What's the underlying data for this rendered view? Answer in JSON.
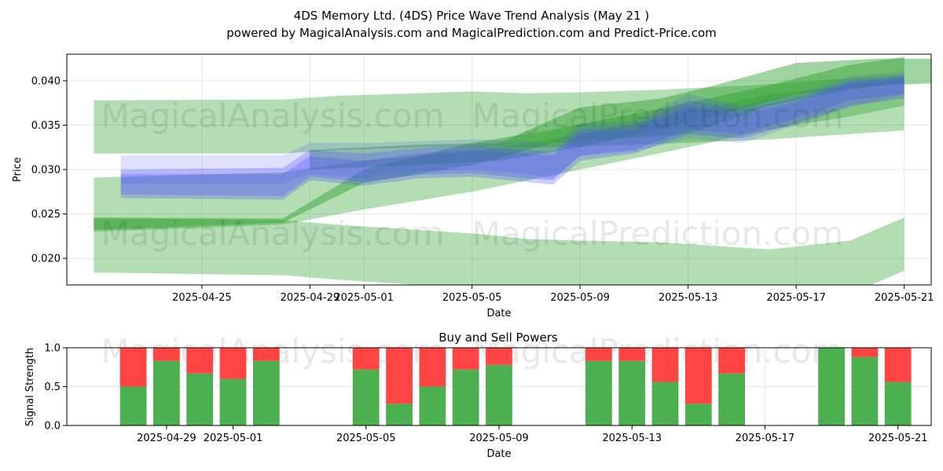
{
  "title": "4DS Memory Ltd. (4DS) Price Wave Trend Analysis (May 21 )",
  "subtitle": "powered by MagicalAnalysis.com and MagicalPrediction.com and Predict-Price.com",
  "watermarks": [
    "MagicalAnalysis.com",
    "MagicalPrediction.com"
  ],
  "colors": {
    "green": "#2ca02c",
    "blue": "#4d4dff",
    "buy": "#4caf50",
    "sell": "#ff4444"
  },
  "chart_data": [
    {
      "type": "area",
      "xlabel": "Date",
      "ylabel": "Price",
      "xlim": [
        "2025-04-20",
        "2025-05-22"
      ],
      "ylim": [
        0.017,
        0.043
      ],
      "xticks": [
        "2025-04-25",
        "2025-04-29",
        "2025-05-01",
        "2025-05-05",
        "2025-05-09",
        "2025-05-13",
        "2025-05-17",
        "2025-05-21"
      ],
      "yticks": [
        0.02,
        0.025,
        0.03,
        0.035,
        0.04
      ],
      "grid": true,
      "green_bands": [
        {
          "x": [
            "2025-04-21",
            "2025-04-28",
            "2025-04-30",
            "2025-05-03",
            "2025-05-05",
            "2025-05-07",
            "2025-05-09",
            "2025-05-12",
            "2025-05-16",
            "2025-05-19",
            "2025-05-21"
          ],
          "upper": [
            0.0378,
            0.0379,
            0.0383,
            0.0386,
            0.0388,
            0.0386,
            0.0387,
            0.039,
            0.0396,
            0.0403,
            0.0407
          ],
          "lower": [
            0.0318,
            0.0318,
            0.0322,
            0.0325,
            0.0326,
            0.0325,
            0.0326,
            0.0329,
            0.0334,
            0.034,
            0.0344
          ]
        },
        {
          "x": [
            "2025-04-21",
            "2025-04-28",
            "2025-04-30",
            "2025-05-03",
            "2025-05-05",
            "2025-05-07",
            "2025-05-09",
            "2025-05-12",
            "2025-05-16",
            "2025-05-19",
            "2025-05-21"
          ],
          "upper": [
            0.0245,
            0.0243,
            0.0238,
            0.0232,
            0.0228,
            0.0222,
            0.022,
            0.0218,
            0.021,
            0.022,
            0.0246
          ],
          "lower": [
            0.0184,
            0.0181,
            0.0176,
            0.017,
            0.0168,
            0.0162,
            0.016,
            0.0158,
            0.015,
            0.016,
            0.0186
          ]
        },
        {
          "x": [
            "2025-04-21",
            "2025-04-28",
            "2025-05-01",
            "2025-05-05",
            "2025-05-09",
            "2025-05-13",
            "2025-05-16",
            "2025-05-19",
            "2025-05-21"
          ],
          "upper": [
            0.0291,
            0.0297,
            0.031,
            0.032,
            0.034,
            0.0365,
            0.0385,
            0.0395,
            0.04
          ],
          "lower": [
            0.023,
            0.0238,
            0.0255,
            0.0275,
            0.03,
            0.0325,
            0.0345,
            0.036,
            0.0372
          ]
        },
        {
          "x": [
            "2025-04-21",
            "2025-04-28",
            "2025-05-01",
            "2025-05-05",
            "2025-05-08",
            "2025-05-13",
            "2025-05-16",
            "2025-05-19",
            "2025-05-21"
          ],
          "upper": [
            0.0246,
            0.0245,
            0.03,
            0.033,
            0.0345,
            0.0375,
            0.0395,
            0.0418,
            0.0427
          ],
          "lower": [
            0.0232,
            0.024,
            0.0285,
            0.0305,
            0.033,
            0.034,
            0.0372,
            0.039,
            0.0398
          ]
        },
        {
          "x": [
            "2025-04-29",
            "2025-05-03",
            "2025-05-06",
            "2025-05-09",
            "2025-05-12",
            "2025-05-14",
            "2025-05-17",
            "2025-05-20",
            "2025-05-22"
          ],
          "upper": [
            0.0322,
            0.0328,
            0.033,
            0.037,
            0.038,
            0.0395,
            0.042,
            0.0425,
            0.0425
          ],
          "lower": [
            0.03,
            0.0305,
            0.031,
            0.0325,
            0.0345,
            0.036,
            0.0385,
            0.0395,
            0.0397
          ]
        }
      ],
      "blue_bands": [
        {
          "x": [
            "2025-04-22",
            "2025-04-28",
            "2025-04-29",
            "2025-05-01",
            "2025-05-03",
            "2025-05-05",
            "2025-05-07",
            "2025-05-08",
            "2025-05-09",
            "2025-05-11",
            "2025-05-13",
            "2025-05-15",
            "2025-05-17",
            "2025-05-19",
            "2025-05-21"
          ],
          "upper": [
            0.0316,
            0.0316,
            0.033,
            0.033,
            0.0332,
            0.0334,
            0.0332,
            0.0328,
            0.0352,
            0.0355,
            0.0385,
            0.0372,
            0.0385,
            0.0405,
            0.041
          ],
          "lower": [
            0.0284,
            0.0284,
            0.0295,
            0.029,
            0.0298,
            0.03,
            0.0295,
            0.029,
            0.0315,
            0.032,
            0.0335,
            0.033,
            0.035,
            0.037,
            0.0385
          ]
        },
        {
          "x": [
            "2025-04-22",
            "2025-04-28",
            "2025-04-29",
            "2025-05-01",
            "2025-05-03",
            "2025-05-05",
            "2025-05-07",
            "2025-05-08",
            "2025-05-09",
            "2025-05-11",
            "2025-05-13",
            "2025-05-15",
            "2025-05-17",
            "2025-05-19",
            "2025-05-21"
          ],
          "upper": [
            0.03,
            0.0302,
            0.0322,
            0.0318,
            0.0324,
            0.0327,
            0.0322,
            0.032,
            0.0345,
            0.035,
            0.0378,
            0.0368,
            0.038,
            0.04,
            0.0405
          ],
          "lower": [
            0.0268,
            0.0266,
            0.0288,
            0.0282,
            0.029,
            0.0292,
            0.0286,
            0.0283,
            0.031,
            0.0318,
            0.034,
            0.0335,
            0.0352,
            0.0372,
            0.038
          ]
        },
        {
          "x": [
            "2025-04-22",
            "2025-04-28",
            "2025-04-29",
            "2025-05-01",
            "2025-05-03",
            "2025-05-05",
            "2025-05-07",
            "2025-05-08",
            "2025-05-09",
            "2025-05-11",
            "2025-05-13",
            "2025-05-15",
            "2025-05-17",
            "2025-05-19",
            "2025-05-21"
          ],
          "upper": [
            0.0295,
            0.0295,
            0.0315,
            0.031,
            0.0318,
            0.0322,
            0.0318,
            0.0316,
            0.034,
            0.0345,
            0.0372,
            0.0362,
            0.0376,
            0.0398,
            0.0403
          ],
          "lower": [
            0.0272,
            0.027,
            0.0292,
            0.0286,
            0.0294,
            0.0296,
            0.029,
            0.0288,
            0.0316,
            0.0322,
            0.0345,
            0.034,
            0.0358,
            0.0378,
            0.0385
          ]
        }
      ]
    },
    {
      "type": "bar",
      "title": "Buy and Sell Powers",
      "xlabel": "Date",
      "ylabel": "Signal Strength",
      "xlim": [
        "2025-04-26",
        "2025-05-22"
      ],
      "ylim": [
        0.0,
        1.0
      ],
      "xticks": [
        "2025-04-29",
        "2025-05-01",
        "2025-05-05",
        "2025-05-09",
        "2025-05-13",
        "2025-05-17",
        "2025-05-21"
      ],
      "yticks": [
        0.0,
        0.5,
        1.0
      ],
      "grid": true,
      "categories": [
        "2025-04-28",
        "2025-04-29",
        "2025-04-30",
        "2025-05-01",
        "2025-05-02",
        "2025-05-05",
        "2025-05-06",
        "2025-05-07",
        "2025-05-08",
        "2025-05-09",
        "2025-05-12",
        "2025-05-13",
        "2025-05-14",
        "2025-05-15",
        "2025-05-16",
        "2025-05-19",
        "2025-05-20",
        "2025-05-21"
      ],
      "series": [
        {
          "name": "buy",
          "values": [
            0.5,
            0.83,
            0.67,
            0.6,
            0.83,
            0.72,
            0.28,
            0.5,
            0.72,
            0.78,
            0.83,
            0.83,
            0.56,
            0.28,
            0.67,
            1.0,
            0.88,
            0.56
          ]
        },
        {
          "name": "sell",
          "values": [
            0.5,
            0.17,
            0.33,
            0.4,
            0.17,
            0.28,
            0.72,
            0.5,
            0.28,
            0.22,
            0.17,
            0.17,
            0.44,
            0.72,
            0.33,
            0.0,
            0.12,
            0.44
          ]
        }
      ]
    }
  ]
}
